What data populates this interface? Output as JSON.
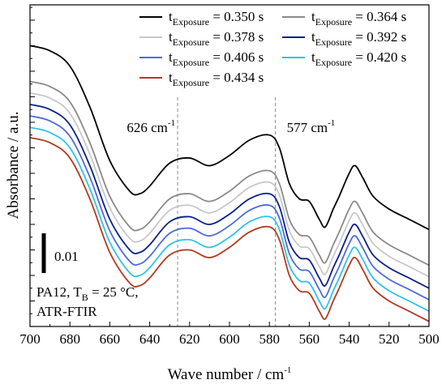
{
  "chart_data": {
    "type": "line",
    "xlabel": "Wave number / cm",
    "xlabel_sup": "-1",
    "ylabel": "Absorbance / a.u.",
    "xlim": [
      700,
      500
    ],
    "x_reversed": true,
    "x_ticks": [
      "700",
      "680",
      "660",
      "640",
      "620",
      "600",
      "580",
      "560",
      "540",
      "520",
      "500"
    ],
    "y_ticks_labeled": false,
    "grid": false,
    "legend_position": "top-right",
    "legend_prefix": "t",
    "legend_subscript": "Exposure",
    "scale_bar": {
      "label": "0.01",
      "value": 0.01
    },
    "annotations": [
      {
        "wavenumber": 626,
        "label": "626 cm",
        "sup": "-1"
      },
      {
        "wavenumber": 577,
        "label": "577 cm",
        "sup": "-1"
      }
    ],
    "sample_text": {
      "line1_pre": "PA12, T",
      "line1_sub": "B",
      "line1_post": " = 25 °C,",
      "line2": "ATR-FTIR"
    },
    "x": [
      700,
      690,
      680,
      670,
      660,
      650,
      645,
      640,
      630,
      620,
      610,
      600,
      590,
      580,
      575,
      570,
      565,
      560,
      555,
      552,
      548,
      545,
      540,
      537,
      533,
      528,
      520,
      510,
      500
    ],
    "series": [
      {
        "name": "= 0.350 s",
        "color": "#000000",
        "offset": 0.0,
        "values": [
          0.36,
          0.358,
          0.352,
          0.336,
          0.315,
          0.303,
          0.302,
          0.305,
          0.314,
          0.316,
          0.313,
          0.317,
          0.323,
          0.325,
          0.32,
          0.306,
          0.3,
          0.299,
          0.292,
          0.289,
          0.296,
          0.301,
          0.31,
          0.313,
          0.308,
          0.301,
          0.296,
          0.292,
          0.288
        ]
      },
      {
        "name": "= 0.364 s",
        "color": "#8a8a8a",
        "offset": -0.014,
        "values": [
          0.36,
          0.358,
          0.352,
          0.336,
          0.315,
          0.303,
          0.302,
          0.305,
          0.314,
          0.316,
          0.313,
          0.317,
          0.323,
          0.325,
          0.32,
          0.306,
          0.3,
          0.299,
          0.292,
          0.289,
          0.296,
          0.301,
          0.31,
          0.313,
          0.308,
          0.301,
          0.296,
          0.292,
          0.288
        ]
      },
      {
        "name": "= 0.378 s",
        "color": "#c8c8c8",
        "offset": -0.0185,
        "values": [
          0.36,
          0.358,
          0.352,
          0.336,
          0.315,
          0.303,
          0.302,
          0.305,
          0.314,
          0.316,
          0.313,
          0.317,
          0.323,
          0.325,
          0.32,
          0.306,
          0.3,
          0.299,
          0.292,
          0.289,
          0.296,
          0.301,
          0.31,
          0.313,
          0.308,
          0.301,
          0.296,
          0.292,
          0.288
        ]
      },
      {
        "name": "= 0.392 s",
        "color": "#0b1f8a",
        "offset": -0.023,
        "values": [
          0.36,
          0.358,
          0.352,
          0.336,
          0.315,
          0.303,
          0.302,
          0.305,
          0.314,
          0.316,
          0.313,
          0.317,
          0.323,
          0.325,
          0.32,
          0.306,
          0.3,
          0.299,
          0.292,
          0.289,
          0.296,
          0.301,
          0.31,
          0.313,
          0.308,
          0.301,
          0.296,
          0.292,
          0.288
        ]
      },
      {
        "name": "= 0.406 s",
        "color": "#4d6bd8",
        "offset": -0.0275,
        "values": [
          0.36,
          0.358,
          0.352,
          0.336,
          0.315,
          0.303,
          0.302,
          0.305,
          0.314,
          0.316,
          0.313,
          0.317,
          0.323,
          0.325,
          0.32,
          0.306,
          0.3,
          0.299,
          0.292,
          0.289,
          0.296,
          0.301,
          0.31,
          0.313,
          0.308,
          0.301,
          0.296,
          0.292,
          0.288
        ]
      },
      {
        "name": "= 0.420 s",
        "color": "#2ec4e6",
        "offset": -0.032,
        "values": [
          0.36,
          0.358,
          0.352,
          0.336,
          0.315,
          0.303,
          0.302,
          0.305,
          0.314,
          0.316,
          0.313,
          0.317,
          0.323,
          0.325,
          0.32,
          0.306,
          0.3,
          0.299,
          0.292,
          0.289,
          0.296,
          0.301,
          0.31,
          0.313,
          0.308,
          0.301,
          0.296,
          0.292,
          0.288
        ]
      },
      {
        "name": "= 0.434 s",
        "color": "#b23a1f",
        "offset": -0.036,
        "values": [
          0.36,
          0.358,
          0.352,
          0.336,
          0.315,
          0.303,
          0.302,
          0.305,
          0.314,
          0.316,
          0.313,
          0.317,
          0.323,
          0.325,
          0.32,
          0.306,
          0.3,
          0.299,
          0.292,
          0.289,
          0.296,
          0.301,
          0.31,
          0.313,
          0.308,
          0.301,
          0.296,
          0.292,
          0.288
        ]
      }
    ]
  }
}
